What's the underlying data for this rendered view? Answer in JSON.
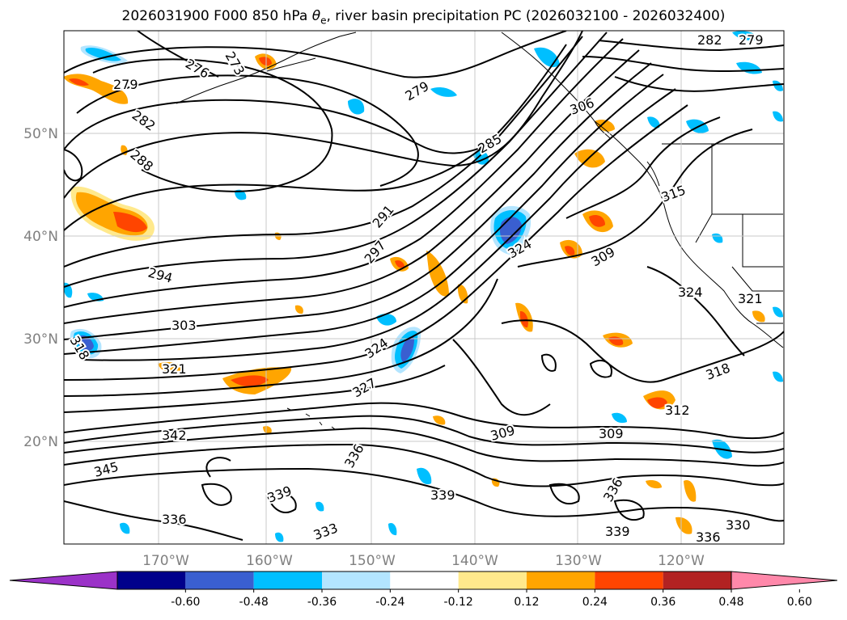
{
  "title": {
    "prefix": "2026031900 F000 850 hPa ",
    "symbol": "θ",
    "symbol_sub": "e",
    "suffix": ", river basin precipitation PC (2026032100 - 2026032400)"
  },
  "map": {
    "lon_ticks": [
      "170°W",
      "160°W",
      "150°W",
      "140°W",
      "130°W",
      "120°W"
    ],
    "lat_ticks": [
      "50°N",
      "40°N",
      "30°N",
      "20°N"
    ],
    "contour_labels": [
      "276",
      "273",
      "279",
      "282",
      "288",
      "279",
      "285",
      "291",
      "297",
      "294",
      "303",
      "321",
      "318",
      "324",
      "327",
      "324",
      "309",
      "306",
      "315",
      "312",
      "309",
      "342",
      "345",
      "336",
      "339",
      "333",
      "336",
      "330",
      "282",
      "279",
      "321",
      "324",
      "318",
      "309",
      "336",
      "339",
      "336",
      "339"
    ]
  },
  "colorbar": {
    "labels": [
      "-0.60",
      "-0.48",
      "-0.36",
      "-0.24",
      "-0.12",
      "0.12",
      "0.24",
      "0.36",
      "0.48",
      "0.60"
    ],
    "colors": [
      "#9b32c8",
      "#00008b",
      "#3a5fd0",
      "#00bfff",
      "#b3e5ff",
      "#ffffff",
      "#ffe98c",
      "#ffa500",
      "#ff4500",
      "#b22222",
      "#ff88aa"
    ]
  }
}
